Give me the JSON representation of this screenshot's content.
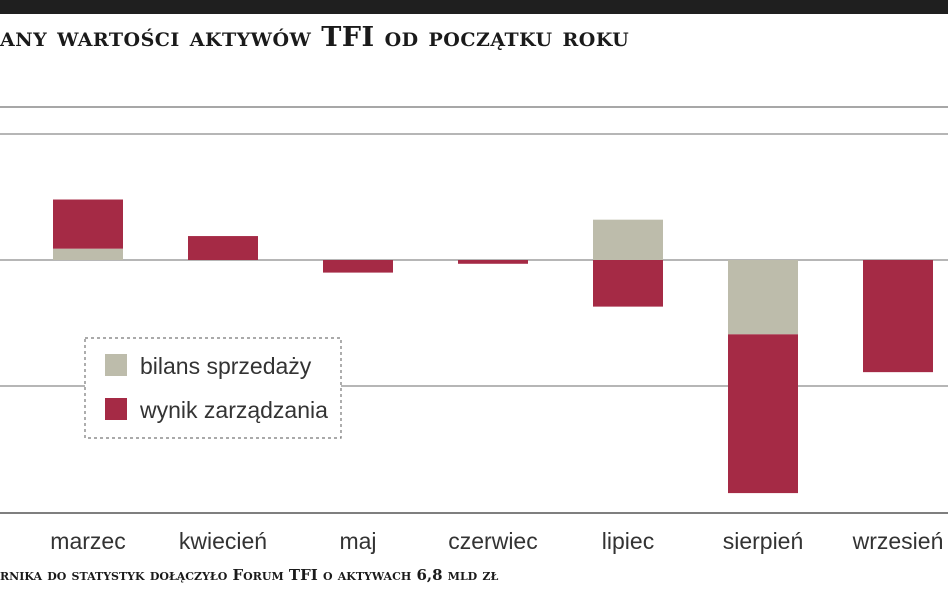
{
  "title": "any wartości aktywów TFI od początku roku",
  "footnote": "rnika do statystyk dołączyło Forum TFI o aktywach 6,8 mld zł",
  "colors": {
    "bilans": "#bdbcab",
    "wynik": "#a52a45",
    "grid": "#8a8a8a",
    "frame": "#555555",
    "legend_border": "#777777"
  },
  "chart_data": {
    "type": "bar",
    "stacked": true,
    "categories": [
      "marzec",
      "kwiecień",
      "maj",
      "czerwiec",
      "lipiec",
      "sierpień",
      "wrzesień"
    ],
    "series": [
      {
        "name": "bilans sprzedaży",
        "color": "#bdbcab",
        "values": [
          0.45,
          0.0,
          0.0,
          0.0,
          1.6,
          -2.95,
          0.0
        ]
      },
      {
        "name": "wynik zarządzania",
        "color": "#a52a45",
        "values": [
          1.95,
          0.95,
          -0.5,
          -0.15,
          -1.85,
          -6.3,
          -4.45
        ]
      }
    ],
    "ylim": [
      -10,
      5
    ],
    "gridlines": [
      5,
      0,
      -5
    ],
    "grid": true,
    "legend": "center-left"
  }
}
